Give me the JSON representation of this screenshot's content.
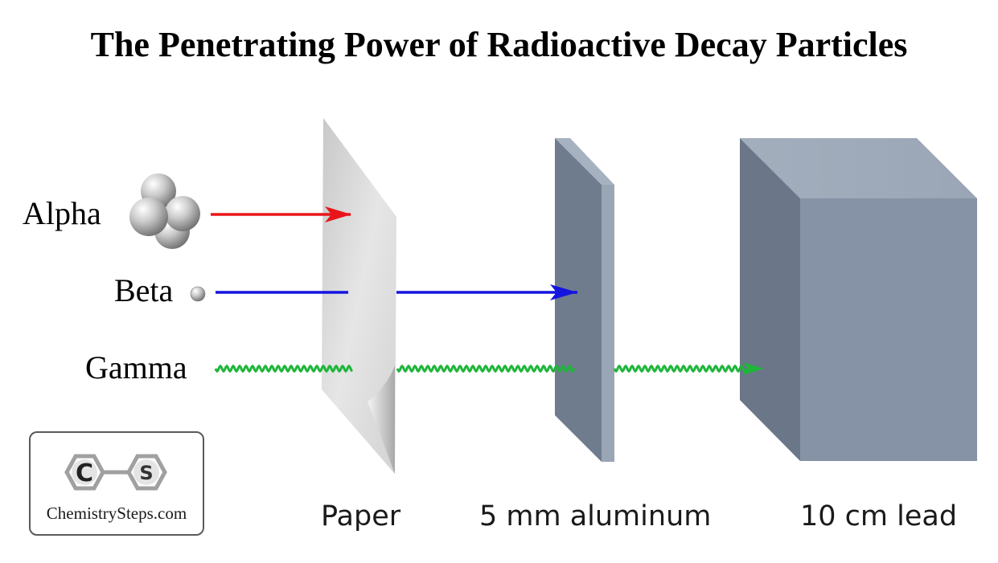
{
  "title": "The Penetrating Power of Radioactive Decay Particles",
  "particles": {
    "alpha": "Alpha",
    "beta": "Beta",
    "gamma": "Gamma"
  },
  "barriers": {
    "paper": "Paper",
    "aluminum": "5 mm aluminum",
    "lead": "10 cm lead"
  },
  "logo": {
    "letter_left": "C",
    "letter_right": "S",
    "text": "ChemistrySteps.com"
  },
  "colors": {
    "alpha_arrow": "#e8161b",
    "beta_arrow": "#1414e0",
    "gamma_wave": "#1fb53a",
    "aluminum": "#6f7c8e",
    "lead": "#8693a6",
    "paper": "#dcdcdc"
  },
  "icons": {
    "alpha": "helium-nucleus-cluster-icon",
    "beta": "electron-sphere-icon"
  }
}
